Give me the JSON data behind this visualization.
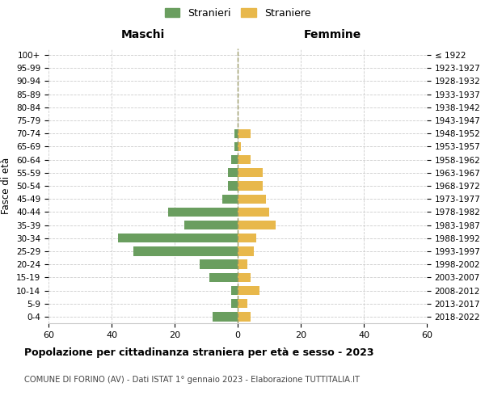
{
  "age_groups": [
    "0-4",
    "5-9",
    "10-14",
    "15-19",
    "20-24",
    "25-29",
    "30-34",
    "35-39",
    "40-44",
    "45-49",
    "50-54",
    "55-59",
    "60-64",
    "65-69",
    "70-74",
    "75-79",
    "80-84",
    "85-89",
    "90-94",
    "95-99",
    "100+"
  ],
  "birth_years": [
    "2018-2022",
    "2013-2017",
    "2008-2012",
    "2003-2007",
    "1998-2002",
    "1993-1997",
    "1988-1992",
    "1983-1987",
    "1978-1982",
    "1973-1977",
    "1968-1972",
    "1963-1967",
    "1958-1962",
    "1953-1957",
    "1948-1952",
    "1943-1947",
    "1938-1942",
    "1933-1937",
    "1928-1932",
    "1923-1927",
    "≤ 1922"
  ],
  "males": [
    8,
    2,
    2,
    9,
    12,
    33,
    38,
    17,
    22,
    5,
    3,
    3,
    2,
    1,
    1,
    0,
    0,
    0,
    0,
    0,
    0
  ],
  "females": [
    4,
    3,
    7,
    4,
    3,
    5,
    6,
    12,
    10,
    9,
    8,
    8,
    4,
    1,
    4,
    0,
    0,
    0,
    0,
    0,
    0
  ],
  "male_color": "#6a9e5f",
  "female_color": "#e8b84b",
  "title": "Popolazione per cittadinanza straniera per età e sesso - 2023",
  "subtitle": "COMUNE DI FORINO (AV) - Dati ISTAT 1° gennaio 2023 - Elaborazione TUTTITALIA.IT",
  "xlabel_left": "Maschi",
  "xlabel_right": "Femmine",
  "ylabel_left": "Fasce di età",
  "legend_males": "Stranieri",
  "legend_females": "Straniere",
  "xlim": 60,
  "background_color": "#ffffff",
  "grid_color": "#cccccc"
}
